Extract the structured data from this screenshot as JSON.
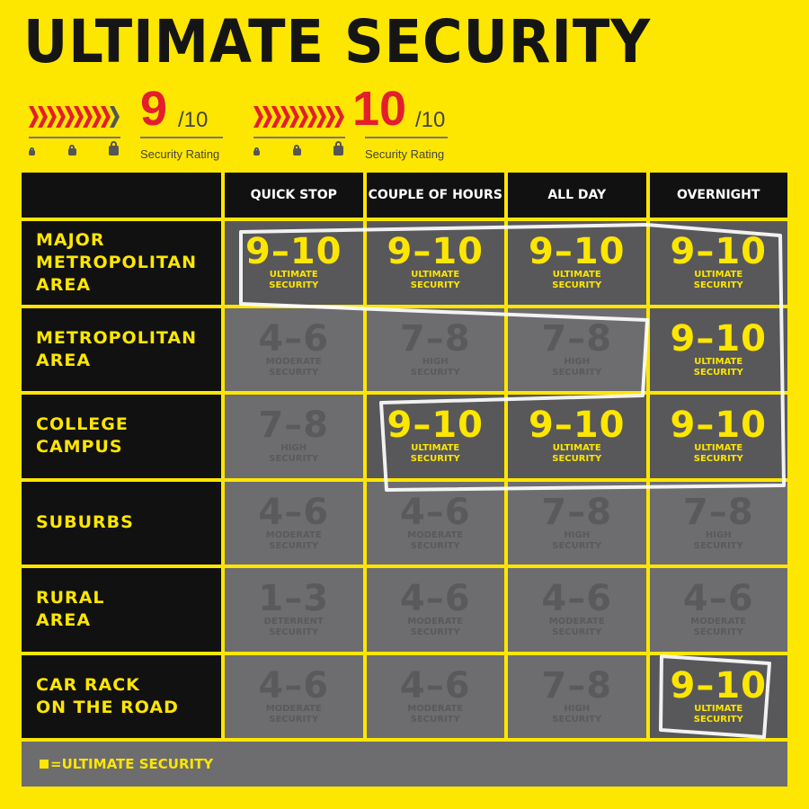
{
  "title": "ULTIMATE SECURITY",
  "ratings": [
    {
      "value": "9",
      "out_of": "/10",
      "label": "Security Rating",
      "filled": 9
    },
    {
      "value": "10",
      "out_of": "/10",
      "label": "Security Rating",
      "filled": 10
    }
  ],
  "columns": [
    "QUICK STOP",
    "COUPLE OF HOURS",
    "ALL DAY",
    "OVERNIGHT"
  ],
  "rows": [
    {
      "label": "MAJOR\nMETROPOLITAN\nAREA",
      "cells": [
        {
          "score": "9–10",
          "level": "ULTIMATE\nSECURITY",
          "ultimate": true
        },
        {
          "score": "9–10",
          "level": "ULTIMATE\nSECURITY",
          "ultimate": true
        },
        {
          "score": "9–10",
          "level": "ULTIMATE\nSECURITY",
          "ultimate": true
        },
        {
          "score": "9–10",
          "level": "ULTIMATE\nSECURITY",
          "ultimate": true
        }
      ]
    },
    {
      "label": "METROPOLITAN\nAREA",
      "cells": [
        {
          "score": "4–6",
          "level": "MODERATE\nSECURITY",
          "ultimate": false
        },
        {
          "score": "7–8",
          "level": "HIGH\nSECURITY",
          "ultimate": false
        },
        {
          "score": "7–8",
          "level": "HIGH\nSECURITY",
          "ultimate": false
        },
        {
          "score": "9–10",
          "level": "ULTIMATE\nSECURITY",
          "ultimate": true
        }
      ]
    },
    {
      "label": "COLLEGE\nCAMPUS",
      "cells": [
        {
          "score": "7–8",
          "level": "HIGH\nSECURITY",
          "ultimate": false
        },
        {
          "score": "9–10",
          "level": "ULTIMATE\nSECURITY",
          "ultimate": true
        },
        {
          "score": "9–10",
          "level": "ULTIMATE\nSECURITY",
          "ultimate": true
        },
        {
          "score": "9–10",
          "level": "ULTIMATE\nSECURITY",
          "ultimate": true
        }
      ]
    },
    {
      "label": "SUBURBS",
      "cells": [
        {
          "score": "4–6",
          "level": "MODERATE\nSECURITY",
          "ultimate": false
        },
        {
          "score": "4–6",
          "level": "MODERATE\nSECURITY",
          "ultimate": false
        },
        {
          "score": "7–8",
          "level": "HIGH\nSECURITY",
          "ultimate": false
        },
        {
          "score": "7–8",
          "level": "HIGH\nSECURITY",
          "ultimate": false
        }
      ]
    },
    {
      "label": "RURAL\nAREA",
      "cells": [
        {
          "score": "1–3",
          "level": "DETERRENT\nSECURITY",
          "ultimate": false
        },
        {
          "score": "4–6",
          "level": "MODERATE\nSECURITY",
          "ultimate": false
        },
        {
          "score": "4–6",
          "level": "MODERATE\nSECURITY",
          "ultimate": false
        },
        {
          "score": "4–6",
          "level": "MODERATE\nSECURITY",
          "ultimate": false
        }
      ]
    },
    {
      "label": "CAR RACK\nON THE ROAD",
      "cells": [
        {
          "score": "4–6",
          "level": "MODERATE\nSECURITY",
          "ultimate": false
        },
        {
          "score": "4–6",
          "level": "MODERATE\nSECURITY",
          "ultimate": false
        },
        {
          "score": "7–8",
          "level": "HIGH\nSECURITY",
          "ultimate": false
        },
        {
          "score": "9–10",
          "level": "ULTIMATE\nSECURITY",
          "ultimate": true
        }
      ]
    }
  ],
  "legend": "=ULTIMATE SECURITY",
  "colors": {
    "background": "#fde600",
    "accent": "#e31e2d",
    "cell": "#6d6d6f",
    "dark": "#111111"
  }
}
